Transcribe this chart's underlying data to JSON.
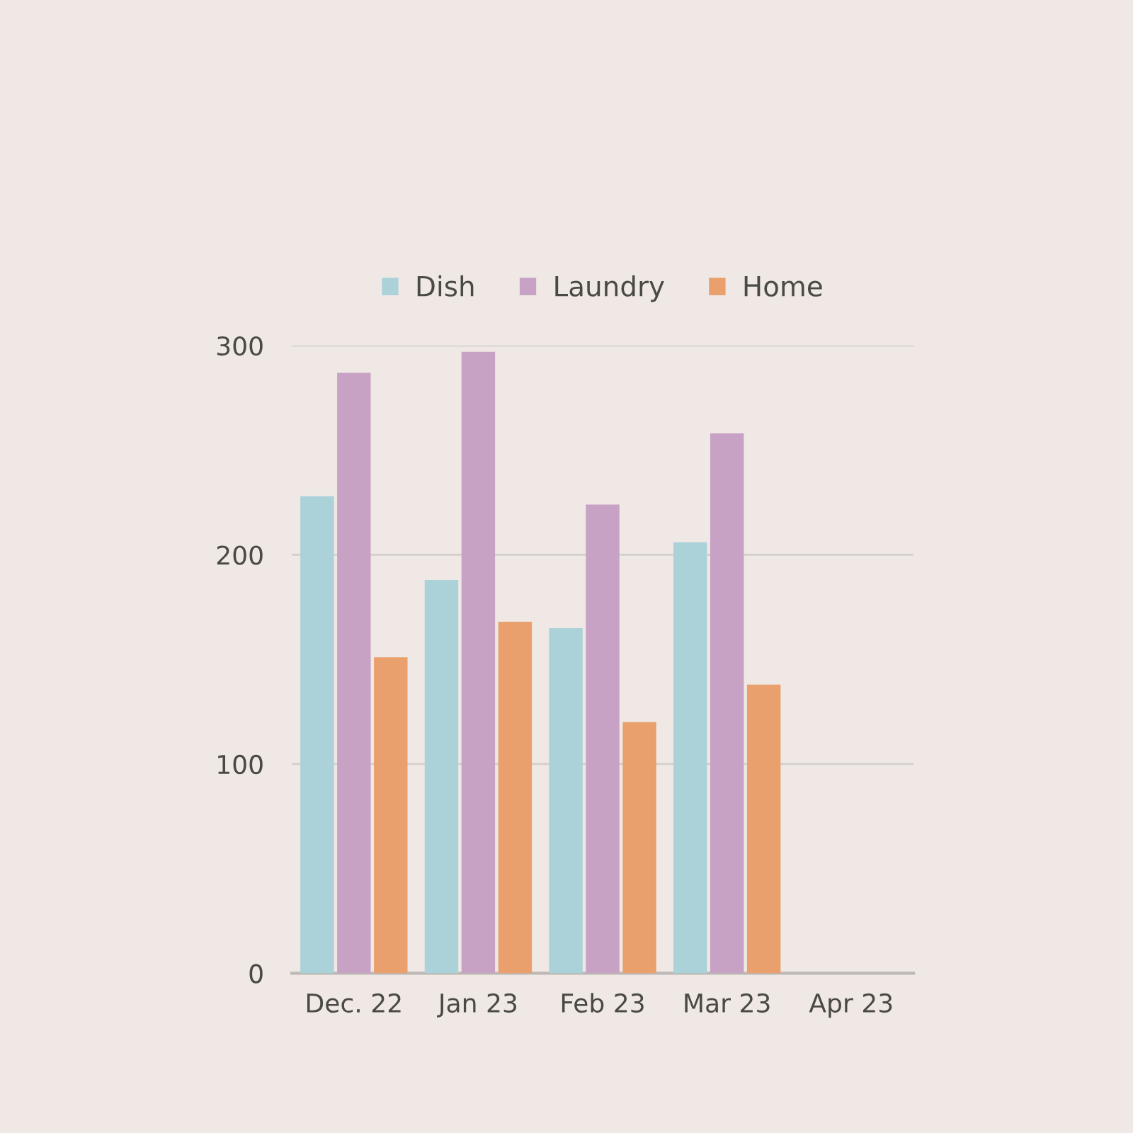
{
  "chart_data": {
    "type": "bar",
    "categories": [
      "Dec. 22",
      "Jan 23",
      "Feb 23",
      "Mar 23",
      "Apr 23"
    ],
    "series": [
      {
        "name": "Dish",
        "color": "#abd1d9",
        "values": [
          228,
          188,
          165,
          206,
          null
        ]
      },
      {
        "name": "Laundry",
        "color": "#c8a2c4",
        "values": [
          287,
          297,
          224,
          258,
          null
        ]
      },
      {
        "name": "Home",
        "color": "#e9a06d",
        "values": [
          151,
          168,
          120,
          138,
          null
        ]
      }
    ],
    "ylim": [
      0,
      300
    ],
    "yticks": [
      0,
      100,
      200,
      300
    ],
    "grid": "y",
    "legend": "top"
  }
}
